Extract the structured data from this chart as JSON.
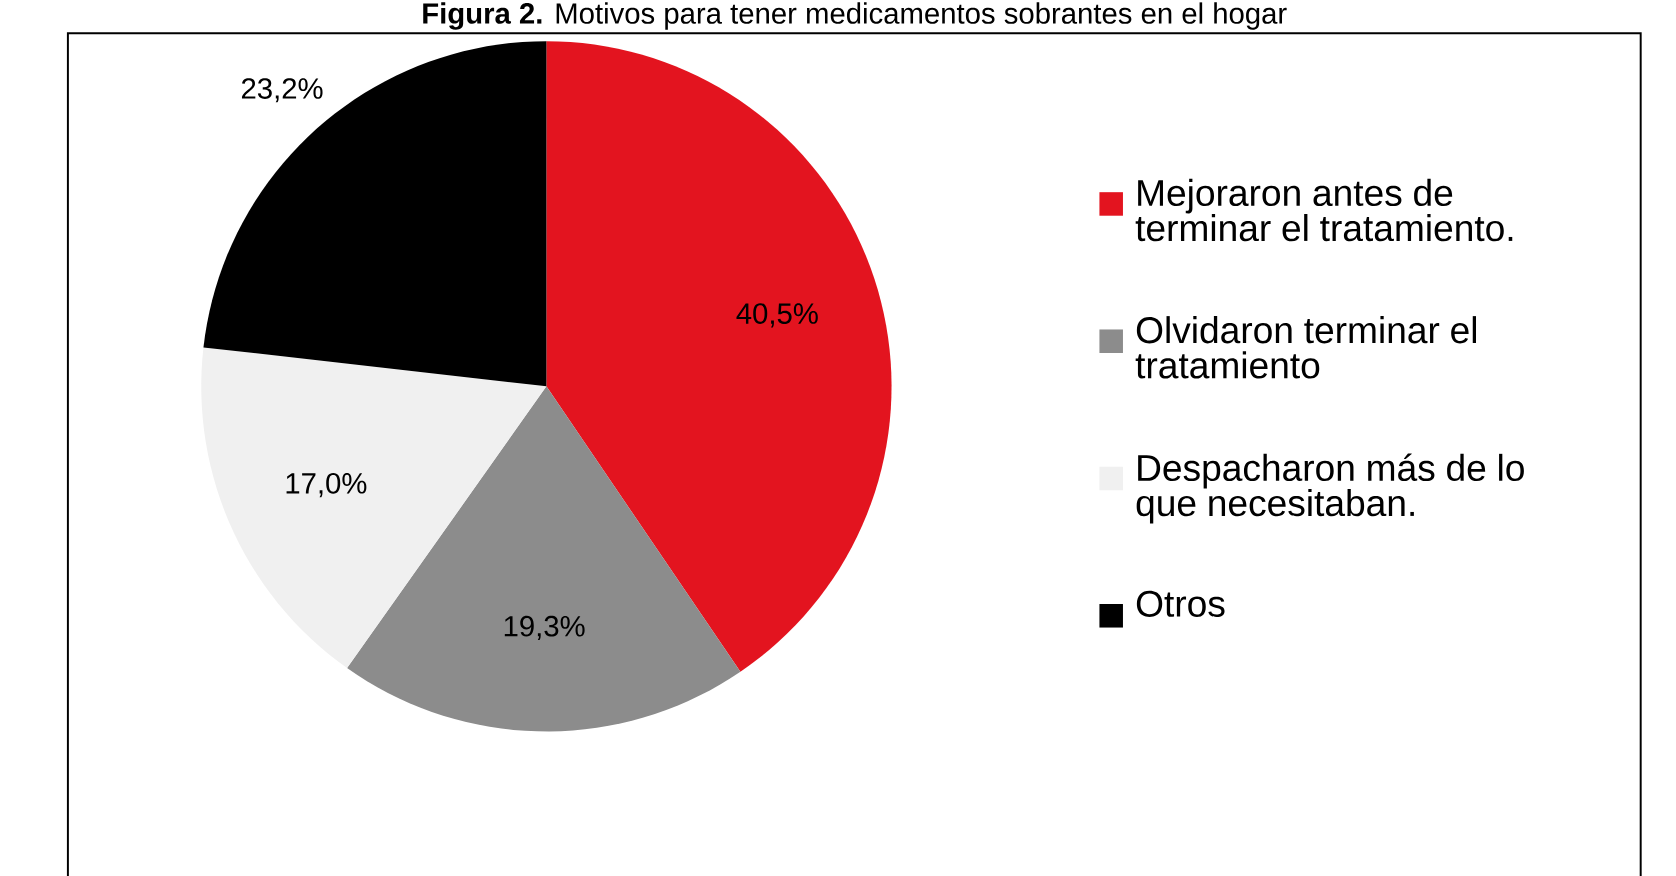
{
  "chart_data": {
    "type": "pie",
    "title": "**Figura 2.** Motivos para tener medicamentos sobrantes en el hogar",
    "categories": [
      "Mejoraron antes de terminar el tratamiento.",
      "Olvidaron terminar el tratamiento",
      "Despacharon más de lo que necesitaban.",
      "Otros"
    ],
    "values": [
      40.5,
      19.3,
      17.0,
      23.2
    ],
    "value_labels": [
      "40,5%",
      "19,3%",
      "17,0%",
      "23,2%"
    ],
    "colors": [
      "#e3141f",
      "#8c8c8c",
      "#f0f0f0",
      "#000000"
    ],
    "legend": "right"
  }
}
